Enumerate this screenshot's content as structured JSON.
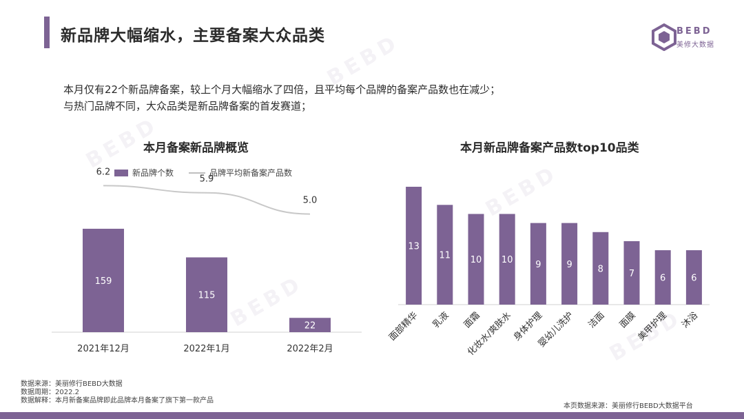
{
  "page": {
    "title": "新品牌大幅缩水，主要备案大众品类",
    "logo_text": "BEBD",
    "logo_sub": "美修大数据",
    "intro_lines": [
      "本月仅有22个新品牌备案，较上个月大幅缩水了四倍，且平均每个品牌的备案产品数也在减少；",
      "与热门品牌不同，大众品类是新品牌备案的首发赛道；"
    ],
    "notes": [
      "数据来源：美丽修行BEBD大数据",
      "数据周期：2022.2",
      "数据解释：本月新备案品牌即此品牌本月备案了旗下第一款产品"
    ],
    "source_right": "本页数据来源：美丽修行BEBD大数据平台",
    "brand_color": "#7d6394",
    "line_color": "#c8c8c8"
  },
  "chart_data": [
    {
      "type": "bar",
      "title": "本月备案新品牌概览",
      "categories": [
        "2021年12月",
        "2022年1月",
        "2022年2月"
      ],
      "series": [
        {
          "name": "新品牌个数",
          "kind": "bar",
          "values": [
            159,
            115,
            22
          ]
        },
        {
          "name": "品牌平均新备案产品数",
          "kind": "line",
          "values": [
            6.2,
            5.9,
            5.0
          ]
        }
      ],
      "legend_position": "top",
      "grid": false
    },
    {
      "type": "bar",
      "title": "本月新品牌备案产品数top10品类",
      "categories": [
        "面部精华",
        "乳液",
        "面霜",
        "化妆水/爽肤水",
        "身体护理",
        "婴幼儿洗护",
        "洁面",
        "面膜",
        "美甲护理",
        "沐浴"
      ],
      "values": [
        13,
        11,
        10,
        10,
        9,
        9,
        8,
        7,
        6,
        6
      ],
      "grid": false
    }
  ]
}
